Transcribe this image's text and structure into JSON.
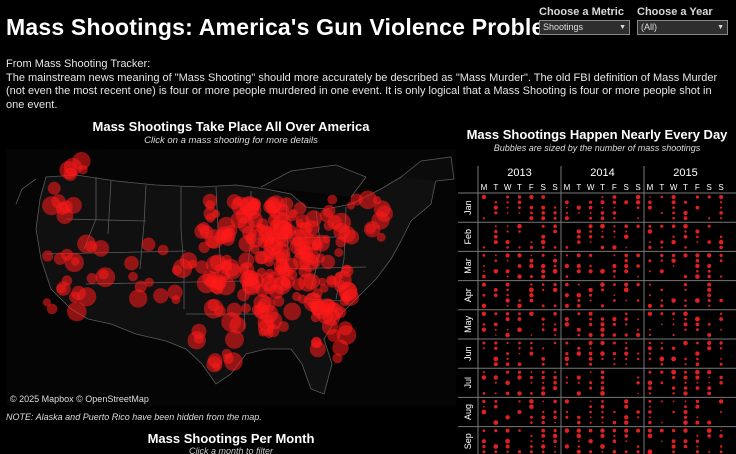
{
  "header": {
    "title": "Mass Shootings: America's Gun Violence Problem"
  },
  "controls": {
    "metric_label": "Choose a Metric",
    "metric_value": "Shootings",
    "year_label": "Choose a Year",
    "year_value": "(All)"
  },
  "intro": {
    "source": "From Mass Shooting Tracker:",
    "body": "The mainstream news meaning of \"Mass Shooting\" should more accurately be described as \"Mass Murder\". The old FBI definition of Mass Murder (not even the most recent one) is four or more people murdered in one event. It is only logical that a Mass Shooting is four or more people shot in one event."
  },
  "map": {
    "title": "Mass Shootings Take Place All Over America",
    "subtitle": "Click on a mass shooting for more details",
    "attribution": "© 2025 Mapbox  © OpenStreetMap",
    "note": "NOTE: Alaska and Puerto Rico have been hidden from the map.",
    "bubble_color": "#ff1a1a"
  },
  "monthly": {
    "title": "Mass Shootings Per Month",
    "subtitle": "Click a month to filter"
  },
  "calendar": {
    "title": "Mass Shootings Happen Nearly Every Day",
    "subtitle": "Bubbles are sized by the number of  mass shootings",
    "years": [
      "2013",
      "2014",
      "2015"
    ],
    "weekdays": [
      "M",
      "T",
      "W",
      "T",
      "F",
      "S",
      "S"
    ],
    "months": [
      "Jan",
      "Feb",
      "Mar",
      "Apr",
      "May",
      "Jun",
      "Jul",
      "Aug",
      "Sep"
    ],
    "dot_color": "#e02020"
  }
}
